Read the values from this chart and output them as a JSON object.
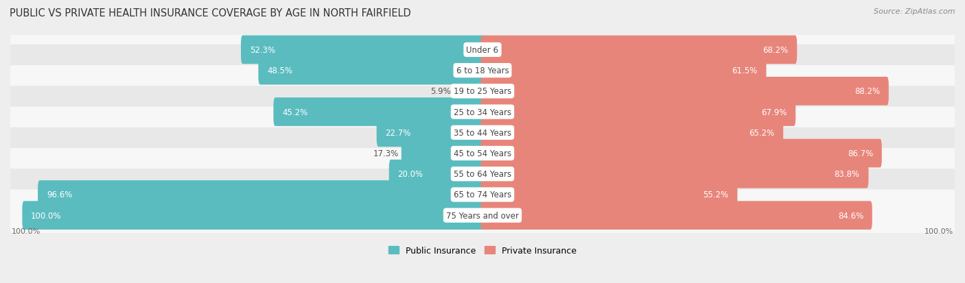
{
  "title": "PUBLIC VS PRIVATE HEALTH INSURANCE COVERAGE BY AGE IN NORTH FAIRFIELD",
  "source": "Source: ZipAtlas.com",
  "categories": [
    "Under 6",
    "6 to 18 Years",
    "19 to 25 Years",
    "25 to 34 Years",
    "35 to 44 Years",
    "45 to 54 Years",
    "55 to 64 Years",
    "65 to 74 Years",
    "75 Years and over"
  ],
  "public_values": [
    52.3,
    48.5,
    5.9,
    45.2,
    22.7,
    17.3,
    20.0,
    96.6,
    100.0
  ],
  "private_values": [
    68.2,
    61.5,
    88.2,
    67.9,
    65.2,
    86.7,
    83.8,
    55.2,
    84.6
  ],
  "public_color": "#5bbcbf",
  "private_color": "#e8857a",
  "bg_color": "#eeeeee",
  "row_bg_colors": [
    "#f7f7f7",
    "#e8e8e8"
  ],
  "max_value": 100.0,
  "legend_public": "Public Insurance",
  "legend_private": "Private Insurance",
  "title_fontsize": 10.5,
  "label_fontsize": 8.5,
  "source_fontsize": 8,
  "cat_fontsize": 8.5,
  "footer_fontsize": 8
}
